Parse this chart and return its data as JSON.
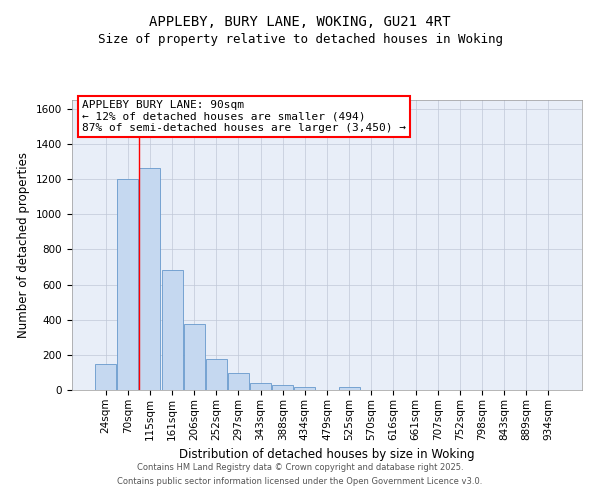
{
  "title_line1": "APPLEBY, BURY LANE, WOKING, GU21 4RT",
  "title_line2": "Size of property relative to detached houses in Woking",
  "xlabel": "Distribution of detached houses by size in Woking",
  "ylabel": "Number of detached properties",
  "categories": [
    "24sqm",
    "70sqm",
    "115sqm",
    "161sqm",
    "206sqm",
    "252sqm",
    "297sqm",
    "343sqm",
    "388sqm",
    "434sqm",
    "479sqm",
    "525sqm",
    "570sqm",
    "616sqm",
    "661sqm",
    "707sqm",
    "752sqm",
    "798sqm",
    "843sqm",
    "889sqm",
    "934sqm"
  ],
  "values": [
    150,
    1200,
    1265,
    685,
    375,
    175,
    95,
    38,
    28,
    18,
    0,
    15,
    0,
    0,
    0,
    0,
    0,
    0,
    0,
    0,
    0
  ],
  "bar_color": "#c5d8f0",
  "bar_edgecolor": "#6699cc",
  "bar_width": 0.95,
  "ylim": [
    0,
    1650
  ],
  "yticks": [
    0,
    200,
    400,
    600,
    800,
    1000,
    1200,
    1400,
    1600
  ],
  "red_line_x": 1.5,
  "annotation_text": "APPLEBY BURY LANE: 90sqm\n← 12% of detached houses are smaller (494)\n87% of semi-detached houses are larger (3,450) →",
  "background_color": "#e8eef8",
  "grid_color": "#c0c8d8",
  "footer_line1": "Contains HM Land Registry data © Crown copyright and database right 2025.",
  "footer_line2": "Contains public sector information licensed under the Open Government Licence v3.0.",
  "title_fontsize": 10,
  "subtitle_fontsize": 9,
  "tick_fontsize": 7.5,
  "ylabel_fontsize": 8.5,
  "xlabel_fontsize": 8.5,
  "annotation_fontsize": 8,
  "footer_fontsize": 6
}
